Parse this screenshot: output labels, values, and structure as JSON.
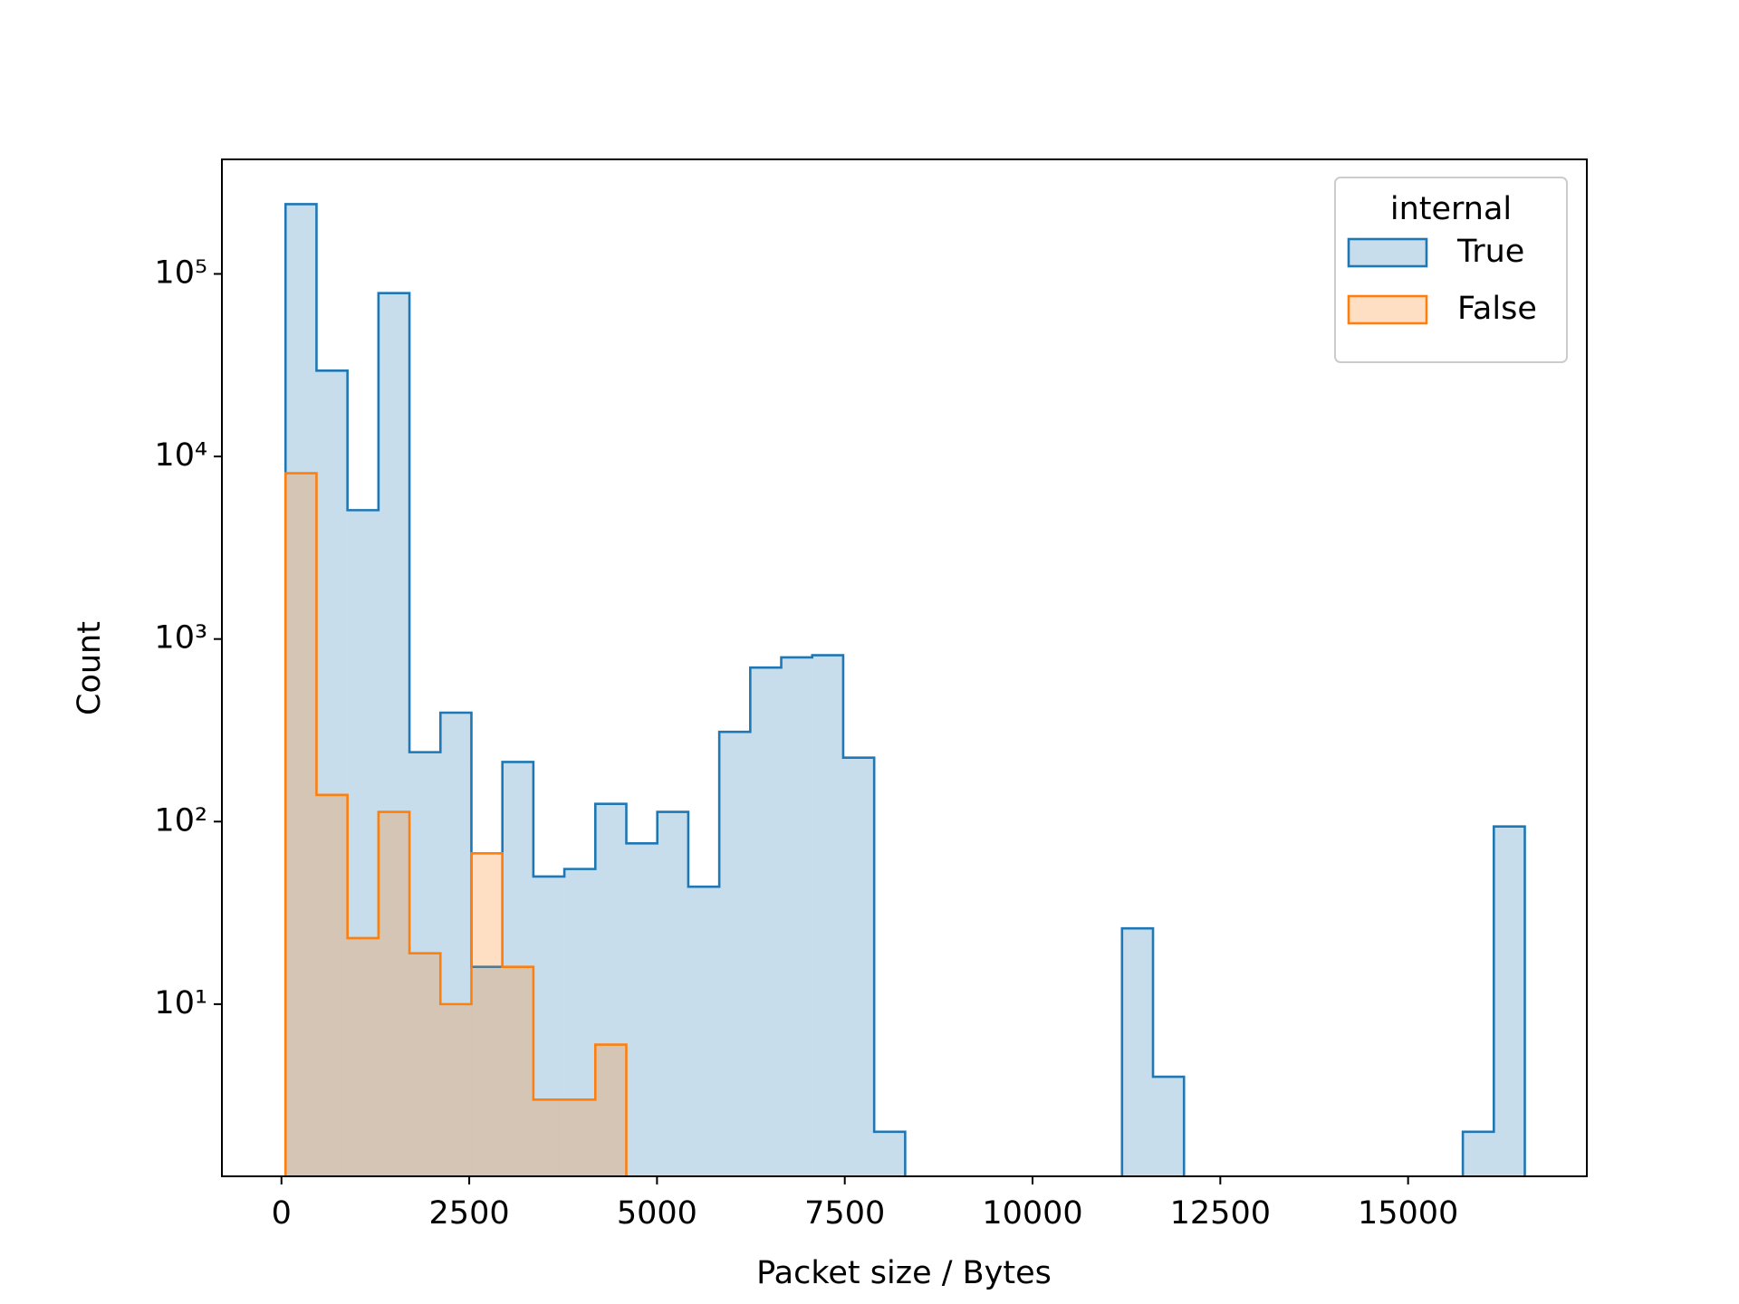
{
  "chart_data": {
    "type": "histogram",
    "x_label": "Packet size / Bytes",
    "y_label": "Count",
    "bins": [
      54,
      466.5,
      879,
      1291.5,
      1704,
      2116.5,
      2529,
      2941.5,
      3354,
      3766.5,
      4179,
      4591.5,
      5004,
      5416.5,
      5829,
      6241.5,
      6654,
      7066.5,
      7479,
      7891.5,
      8304,
      8716.5,
      9129,
      9541.5,
      9954,
      10366.5,
      10779,
      11191.5,
      11604,
      12016.5,
      12429,
      12841.5,
      13254,
      13666.5,
      14079,
      14491.5,
      14904,
      15316.5,
      15729,
      16141.5,
      16554
    ],
    "series": [
      {
        "name": "True",
        "color": "#1f77b4",
        "values": [
          241000,
          29500,
          5080,
          78500,
          240,
          395,
          16,
          212,
          50,
          55,
          125,
          76,
          113,
          44,
          310,
          698,
          793,
          815,
          224,
          2,
          0,
          0,
          0,
          0,
          0,
          0,
          0,
          26,
          4,
          0,
          0,
          0,
          0,
          0,
          0,
          0,
          0,
          0,
          2,
          94
        ]
      },
      {
        "name": "False",
        "color": "#ff7f0e",
        "values": [
          8100,
          140,
          23,
          113,
          19,
          10,
          67,
          16,
          3,
          3,
          6,
          0,
          0,
          0,
          0,
          0,
          0,
          0,
          0,
          0,
          0,
          0,
          0,
          0,
          0,
          0,
          0,
          0,
          0,
          0,
          0,
          0,
          0,
          0,
          0,
          0,
          0,
          0,
          0,
          0
        ]
      }
    ],
    "log_y": true,
    "legend_title": "internal",
    "legend": "upper right",
    "xlim": [
      -793,
      17380
    ],
    "ylim": [
      1.14,
      424000
    ],
    "xticks": [
      0,
      2500,
      5000,
      7500,
      10000,
      12500,
      15000
    ],
    "yticks": [
      {
        "value": 10,
        "label": "10¹"
      },
      {
        "value": 100,
        "label": "10²"
      },
      {
        "value": 1000,
        "label": "10³"
      },
      {
        "value": 10000,
        "label": "10⁴"
      },
      {
        "value": 100000,
        "label": "10⁵"
      }
    ]
  }
}
